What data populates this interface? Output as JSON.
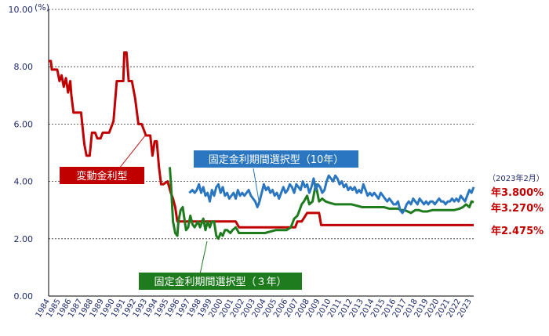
{
  "chart_data": {
    "type": "line",
    "y_unit": "(%)",
    "ylim": [
      0,
      10
    ],
    "yticks": [
      "0.00",
      "2.00",
      "4.00",
      "6.00",
      "8.00",
      "10.00"
    ],
    "xlim": [
      1984,
      2023.3
    ],
    "xticks": [
      "1984",
      "1985",
      "1986",
      "1987",
      "1988",
      "1989",
      "1990",
      "1991",
      "1992",
      "1993",
      "1994",
      "1995",
      "1996",
      "1997",
      "1998",
      "1999",
      "2000",
      "2001",
      "2002",
      "2003",
      "2004",
      "2005",
      "2006",
      "2007",
      "2008",
      "2009",
      "2010",
      "2011",
      "2012",
      "2013",
      "2014",
      "2015",
      "2016",
      "2017",
      "2018",
      "2019",
      "2020",
      "2021",
      "2022",
      "2023"
    ],
    "grid": "horizontal-dotted",
    "date_note": "（2023年2月）",
    "series": [
      {
        "name": "変動金利型",
        "color": "#c00000",
        "x": [
          1984.0,
          1984.2,
          1984.3,
          1984.8,
          1985.0,
          1985.2,
          1985.4,
          1985.6,
          1985.8,
          1986.0,
          1986.1,
          1986.3,
          1986.5,
          1987.0,
          1987.3,
          1987.5,
          1987.8,
          1988.0,
          1988.3,
          1988.5,
          1988.8,
          1989.0,
          1989.3,
          1989.6,
          1990.0,
          1990.3,
          1990.6,
          1990.9,
          1991.0,
          1991.2,
          1991.4,
          1991.7,
          1992.0,
          1992.3,
          1992.6,
          1993.0,
          1993.4,
          1993.6,
          1993.8,
          1994.0,
          1994.2,
          1994.4,
          1994.6,
          1995.0,
          1995.3,
          1995.5,
          1995.7,
          1995.9,
          1996.2,
          2001.0,
          2001.3,
          2001.6,
          2006.8,
          2007.0,
          2007.4,
          2007.9,
          2008.0,
          2009.0,
          2009.2,
          2023.3
        ],
        "y": [
          8.2,
          8.2,
          7.9,
          7.9,
          7.5,
          7.7,
          7.3,
          7.6,
          7.1,
          7.5,
          7.0,
          6.4,
          6.4,
          6.4,
          5.3,
          4.9,
          4.9,
          5.7,
          5.7,
          5.5,
          5.5,
          5.7,
          5.7,
          5.7,
          6.1,
          7.5,
          7.5,
          7.5,
          8.5,
          8.5,
          7.5,
          7.5,
          6.9,
          6.0,
          6.0,
          5.6,
          5.6,
          4.9,
          5.4,
          5.4,
          4.5,
          3.9,
          3.9,
          4.0,
          3.6,
          3.4,
          3.1,
          2.6,
          2.6,
          2.6,
          2.6,
          2.4,
          2.4,
          2.6,
          2.6,
          2.9,
          2.9,
          2.9,
          2.475,
          2.475
        ]
      },
      {
        "name": "固定金利期間選択型（３年）",
        "color": "#1e7b1e",
        "x": [
          1995.2,
          1995.3,
          1995.5,
          1995.7,
          1995.9,
          1996.0,
          1996.2,
          1996.4,
          1996.7,
          1996.9,
          1997.1,
          1997.3,
          1997.5,
          1997.8,
          1998.0,
          1998.3,
          1998.5,
          1998.7,
          1998.9,
          1999.1,
          1999.3,
          1999.5,
          1999.7,
          1999.9,
          2000.1,
          2000.3,
          2000.5,
          2000.8,
          2001.0,
          2001.3,
          2001.6,
          2002.0,
          2003.0,
          2004.0,
          2005.0,
          2006.0,
          2006.4,
          2006.7,
          2007.0,
          2007.2,
          2007.4,
          2007.6,
          2007.9,
          2008.1,
          2008.4,
          2008.7,
          2009.0,
          2009.3,
          2009.6,
          2010.0,
          2010.5,
          2011.0,
          2011.5,
          2012.0,
          2012.5,
          2013.0,
          2013.5,
          2014.0,
          2014.5,
          2015.0,
          2015.5,
          2016.0,
          2016.3,
          2016.6,
          2016.9,
          2017.2,
          2017.5,
          2017.9,
          2018.2,
          2018.6,
          2019.0,
          2019.5,
          2020.0,
          2020.5,
          2021.0,
          2021.5,
          2022.0,
          2022.3,
          2022.6,
          2022.9,
          2023.1,
          2023.3
        ],
        "y": [
          4.5,
          4.0,
          2.6,
          2.2,
          2.1,
          2.6,
          3.0,
          3.1,
          2.3,
          2.4,
          2.8,
          2.5,
          2.4,
          2.6,
          2.4,
          2.7,
          2.3,
          2.6,
          2.4,
          2.6,
          2.6,
          2.1,
          2.0,
          2.2,
          2.1,
          2.3,
          2.3,
          2.2,
          2.3,
          2.4,
          2.2,
          2.2,
          2.2,
          2.2,
          2.3,
          2.3,
          2.4,
          2.7,
          2.8,
          3.0,
          3.2,
          3.3,
          3.5,
          3.2,
          3.3,
          3.9,
          3.3,
          3.4,
          3.3,
          3.25,
          3.2,
          3.2,
          3.2,
          3.2,
          3.15,
          3.1,
          3.1,
          3.1,
          3.1,
          3.1,
          3.05,
          3.05,
          3.05,
          3.0,
          3.0,
          2.95,
          2.9,
          3.0,
          3.0,
          2.95,
          2.95,
          3.0,
          3.0,
          3.0,
          3.0,
          3.0,
          3.05,
          3.1,
          3.2,
          3.1,
          3.3,
          3.27
        ]
      },
      {
        "name": "固定金利期間選択型（10年）",
        "color": "#2a76c0",
        "x": [
          1997.0,
          1997.3,
          1997.5,
          1997.7,
          1997.9,
          1998.1,
          1998.3,
          1998.5,
          1998.7,
          1998.9,
          1999.1,
          1999.3,
          1999.5,
          1999.7,
          1999.9,
          2000.1,
          2000.3,
          2000.5,
          2000.7,
          2000.9,
          2001.1,
          2001.3,
          2001.5,
          2001.7,
          2001.9,
          2002.1,
          2002.3,
          2002.5,
          2002.7,
          2002.9,
          2003.1,
          2003.3,
          2003.5,
          2003.7,
          2003.9,
          2004.1,
          2004.3,
          2004.5,
          2004.7,
          2004.9,
          2005.1,
          2005.3,
          2005.5,
          2005.7,
          2005.9,
          2006.1,
          2006.3,
          2006.5,
          2006.7,
          2006.9,
          2007.1,
          2007.3,
          2007.5,
          2007.7,
          2007.9,
          2008.1,
          2008.3,
          2008.5,
          2008.7,
          2008.9,
          2009.1,
          2009.3,
          2009.5,
          2009.7,
          2009.9,
          2010.1,
          2010.3,
          2010.5,
          2010.7,
          2010.9,
          2011.1,
          2011.3,
          2011.5,
          2011.7,
          2011.9,
          2012.1,
          2012.3,
          2012.5,
          2012.7,
          2012.9,
          2013.1,
          2013.3,
          2013.5,
          2013.7,
          2013.9,
          2014.1,
          2014.3,
          2014.5,
          2014.7,
          2014.9,
          2015.1,
          2015.3,
          2015.5,
          2015.7,
          2015.9,
          2016.1,
          2016.3,
          2016.5,
          2016.7,
          2016.9,
          2017.1,
          2017.3,
          2017.5,
          2017.7,
          2017.9,
          2018.1,
          2018.3,
          2018.5,
          2018.7,
          2018.9,
          2019.1,
          2019.3,
          2019.5,
          2019.7,
          2019.9,
          2020.1,
          2020.3,
          2020.5,
          2020.7,
          2020.9,
          2021.1,
          2021.3,
          2021.5,
          2021.7,
          2021.9,
          2022.1,
          2022.3,
          2022.5,
          2022.7,
          2022.9,
          2023.1,
          2023.3
        ],
        "y": [
          3.6,
          3.7,
          3.6,
          3.7,
          3.9,
          3.6,
          3.8,
          3.5,
          3.6,
          3.3,
          3.7,
          3.5,
          3.8,
          3.9,
          3.6,
          3.8,
          3.5,
          3.6,
          3.4,
          3.5,
          3.6,
          3.4,
          3.7,
          3.5,
          3.6,
          3.5,
          3.6,
          3.7,
          3.5,
          3.4,
          3.3,
          3.1,
          3.3,
          3.6,
          3.9,
          3.7,
          3.8,
          3.6,
          3.7,
          3.5,
          3.6,
          3.4,
          3.6,
          3.8,
          3.6,
          3.7,
          3.9,
          3.8,
          3.6,
          3.9,
          3.8,
          3.7,
          4.0,
          3.8,
          3.9,
          3.6,
          3.8,
          4.1,
          3.7,
          3.9,
          3.8,
          3.6,
          3.7,
          4.0,
          4.2,
          4.1,
          4.0,
          4.2,
          4.1,
          3.9,
          4.0,
          3.8,
          3.9,
          3.7,
          3.8,
          3.7,
          3.8,
          3.6,
          3.7,
          3.6,
          3.9,
          3.7,
          3.5,
          3.6,
          3.5,
          3.6,
          3.5,
          3.4,
          3.6,
          3.5,
          3.4,
          3.3,
          3.4,
          3.3,
          3.2,
          3.2,
          3.3,
          3.0,
          2.9,
          3.0,
          3.2,
          3.3,
          3.2,
          3.4,
          3.3,
          3.2,
          3.4,
          3.3,
          3.2,
          3.3,
          3.2,
          3.3,
          3.3,
          3.2,
          3.3,
          3.4,
          3.3,
          3.3,
          3.2,
          3.3,
          3.3,
          3.4,
          3.3,
          3.4,
          3.3,
          3.5,
          3.4,
          3.3,
          3.5,
          3.7,
          3.6,
          3.8
        ]
      }
    ],
    "callouts": [
      {
        "label": "変動金利型",
        "box_color": "#c00000"
      },
      {
        "label": "固定金利期間選択型（10年）",
        "box_color": "#2a76c0"
      },
      {
        "label": "固定金利期間選択型（３年）",
        "box_color": "#1e7b1e"
      }
    ],
    "end_labels": [
      "年3.800%",
      "年3.270%",
      "年2.475%"
    ]
  }
}
